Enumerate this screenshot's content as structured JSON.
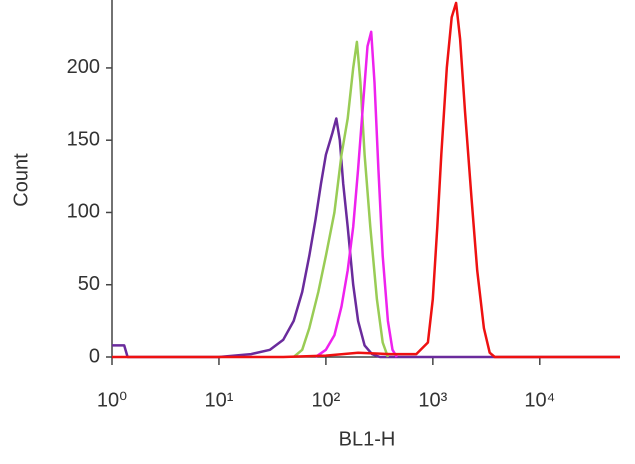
{
  "chart_data": {
    "type": "line",
    "x_label": "BL1-H",
    "y_label": "Count",
    "xscale": "log",
    "xlim": [
      1,
      56234
    ],
    "ylim": [
      0,
      247
    ],
    "xticks": [
      {
        "value": 1,
        "label": "10⁰"
      },
      {
        "value": 10,
        "label": "10¹"
      },
      {
        "value": 100,
        "label": "10²"
      },
      {
        "value": 1000,
        "label": "10³"
      },
      {
        "value": 10000,
        "label": "10⁴"
      }
    ],
    "yticks": [
      0,
      50,
      100,
      150,
      200
    ],
    "series": [
      {
        "color": "#6a2b9c",
        "x": [
          1,
          1.3,
          1.4,
          10,
          20,
          30,
          40,
          50,
          60,
          70,
          80,
          90,
          100,
          115,
          125,
          135,
          145,
          160,
          180,
          200,
          230,
          270,
          320,
          56234
        ],
        "values": [
          8,
          8,
          0,
          0,
          2,
          5,
          12,
          25,
          45,
          70,
          95,
          120,
          140,
          155,
          165,
          150,
          120,
          90,
          50,
          25,
          8,
          2,
          0,
          0
        ]
      },
      {
        "color": "#99cc55",
        "x": [
          50,
          60,
          70,
          85,
          100,
          120,
          140,
          160,
          180,
          195,
          210,
          230,
          260,
          300,
          340,
          380
        ],
        "values": [
          0,
          5,
          20,
          45,
          70,
          100,
          140,
          165,
          200,
          218,
          190,
          140,
          90,
          40,
          10,
          0
        ]
      },
      {
        "color": "#ee22ee",
        "x": [
          80,
          100,
          120,
          140,
          160,
          180,
          200,
          220,
          245,
          265,
          285,
          310,
          340,
          380,
          420,
          460
        ],
        "values": [
          0,
          5,
          15,
          35,
          60,
          90,
          130,
          170,
          215,
          225,
          190,
          130,
          70,
          25,
          5,
          0
        ]
      },
      {
        "color": "#ee1111",
        "x": [
          1,
          40,
          100,
          200,
          400,
          700,
          900,
          1000,
          1100,
          1200,
          1350,
          1500,
          1650,
          1800,
          2000,
          2300,
          2600,
          3000,
          3400,
          3800,
          56234
        ],
        "values": [
          0,
          0,
          1,
          3,
          2,
          2,
          10,
          40,
          90,
          140,
          200,
          235,
          245,
          220,
          170,
          110,
          60,
          20,
          3,
          0,
          0
        ]
      }
    ]
  }
}
